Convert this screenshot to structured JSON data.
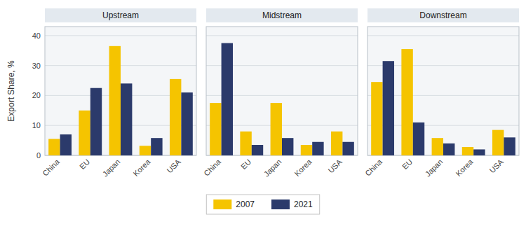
{
  "chart_data": [
    {
      "type": "bar",
      "title": "Upstream",
      "ylabel": "Export Share, %",
      "categories": [
        "China",
        "EU",
        "Japan",
        "Korea",
        "USA"
      ],
      "series": [
        {
          "name": "2007",
          "color": "#F5C400",
          "values": [
            5.5,
            15.0,
            36.5,
            3.2,
            25.5
          ]
        },
        {
          "name": "2021",
          "color": "#2B3A6B",
          "values": [
            7.0,
            22.5,
            24.0,
            5.8,
            21.0
          ]
        }
      ],
      "ylim": [
        0,
        43
      ],
      "yticks": [
        0,
        10,
        20,
        30,
        40
      ],
      "grid": true,
      "legend": "bottom"
    },
    {
      "type": "bar",
      "title": "Midstream",
      "categories": [
        "China",
        "EU",
        "Japan",
        "Korea",
        "USA"
      ],
      "series": [
        {
          "name": "2007",
          "color": "#F5C400",
          "values": [
            17.5,
            8.0,
            17.5,
            3.5,
            8.0
          ]
        },
        {
          "name": "2021",
          "color": "#2B3A6B",
          "values": [
            37.5,
            3.5,
            5.8,
            4.5,
            4.5
          ]
        }
      ],
      "ylim": [
        0,
        43
      ],
      "yticks": [
        0,
        10,
        20,
        30,
        40
      ],
      "grid": true,
      "tick_labels": "x"
    },
    {
      "type": "bar",
      "title": "Downstream",
      "categories": [
        "China",
        "EU",
        "Japan",
        "Korea",
        "USA"
      ],
      "series": [
        {
          "name": "2007",
          "color": "#F5C400",
          "values": [
            24.5,
            35.5,
            5.8,
            2.8,
            8.5
          ]
        },
        {
          "name": "2021",
          "color": "#2B3A6B",
          "values": [
            31.5,
            11.0,
            4.0,
            2.0,
            6.0
          ]
        }
      ],
      "ylim": [
        0,
        43
      ],
      "yticks": [
        0,
        10,
        20,
        30,
        40
      ],
      "grid": true,
      "tick_labels": "x"
    }
  ]
}
